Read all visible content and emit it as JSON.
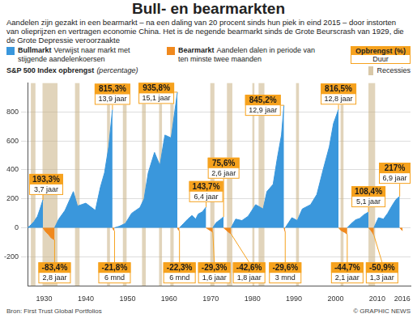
{
  "chart_data": {
    "type": "area",
    "title": "Bull- en bearmarkten",
    "subtitle": "Aandelen zijn gezakt in een bearmarkt – na een daling van 20 procent sinds hun piek in eind 2015 – door instorten van olieprijzen en vertragen economie China. Het is de negende bearmarkt sinds de Grote Beurscrash van 1929, die de Grote Depressie veroorzaakte",
    "y_label": "S&P 500 Index opbrengst",
    "y_label_note": "(percentage)",
    "xlim": [
      1926,
      2018
    ],
    "xticks": [
      1930,
      1940,
      1950,
      1960,
      1970,
      1980,
      1990,
      2000,
      2010,
      2016
    ],
    "ylim": [
      -400,
      1000
    ],
    "yticks": [
      -200,
      0,
      200,
      400,
      600,
      800
    ],
    "grid": true,
    "data_labels": true,
    "legend": "top",
    "label_legend": {
      "value": "Opbrengst (%)",
      "duration": "Duur"
    },
    "series": [
      {
        "name": "Bullmarkt",
        "description": "Verwijst naar markt met stijgende aandelenkoersen",
        "color": "#3a97dc",
        "segments": [
          {
            "x": [
              1926,
              1926.8,
              1927.6,
              1928.4,
              1929.0,
              1929.7
            ],
            "values": [
              0,
              20,
              45,
              80,
              130,
              193.3
            ],
            "value_label": "193,3%",
            "duration": "3,7 jaar"
          },
          {
            "x": [
              1932.5,
              1933.5,
              1935,
              1937,
              1938,
              1940,
              1942.3,
              1943.5,
              1944.5,
              1945.5,
              1946.4
            ],
            "values": [
              0,
              60,
              120,
              250,
              150,
              170,
              120,
              280,
              380,
              560,
              815.3
            ],
            "value_label": "815,3%",
            "duration": "13,9 jaar"
          },
          {
            "x": [
              1946.9,
              1948,
              1949.5,
              1951,
              1953,
              1954,
              1955,
              1956.5,
              1957.8,
              1959,
              1960.5,
              1962.0
            ],
            "values": [
              0,
              10,
              30,
              100,
              140,
              200,
              380,
              520,
              430,
              640,
              620,
              935.8
            ],
            "value_label": "935,8%",
            "duration": "15,1 jaar"
          },
          {
            "x": [
              1962.5,
              1963.5,
              1964.5,
              1965.5,
              1966.4,
              1967,
              1968,
              1968.9
            ],
            "values": [
              0,
              30,
              60,
              85,
              60,
              95,
              110,
              143.7
            ],
            "value_label": "143,7%",
            "duration": "6,4 jaar"
          },
          {
            "x": [
              1970.5,
              1971.3,
              1972.2,
              1973.1
            ],
            "values": [
              0,
              35,
              55,
              75.6
            ],
            "value_label": "75,6%",
            "duration": "2,6 jaar"
          },
          {
            "x": [
              1974.9,
              1976,
              1977.5,
              1979,
              1980.8,
              1982.6,
              1983.5,
              1985,
              1986,
              1987,
              1987.6
            ],
            "values": [
              0,
              60,
              50,
              80,
              160,
              130,
              250,
              300,
              480,
              640,
              845.2
            ],
            "value_label": "845,2%",
            "duration": "12,9 jaar"
          },
          {
            "x": [
              1987.9,
              1989.5,
              1990.8,
              1992,
              1994,
              1995.5,
              1997,
              1998.5,
              1999.5,
              2000.7
            ],
            "values": [
              0,
              70,
              50,
              130,
              160,
              230,
              400,
              560,
              720,
              816.5
            ],
            "value_label": "816,5%",
            "duration": "12,8 jaar"
          },
          {
            "x": [
              2002.8,
              2003.8,
              2004.8,
              2005.8,
              2006.8,
              2007.9
            ],
            "values": [
              0,
              30,
              55,
              65,
              90,
              108.4
            ],
            "value_label": "108,4%",
            "duration": "5,1 jaar"
          },
          {
            "x": [
              2009.2,
              2010.3,
              2011.5,
              2012.5,
              2013.5,
              2014.5,
              2015.4
            ],
            "values": [
              0,
              70,
              60,
              100,
              150,
              195,
              217
            ],
            "value_label": "217%",
            "duration": "6,9 jaar"
          }
        ]
      },
      {
        "name": "Bearmarkt",
        "description": "Aandelen dalen in periode van ten minste twee maanden",
        "color": "#f0891e",
        "segments": [
          {
            "x": [
              1929.7,
              1930.3,
              1931.0,
              1931.7,
              1932.5
            ],
            "values": [
              0,
              -25,
              -45,
              -70,
              -83.4
            ],
            "value_label": "-83,4%",
            "duration": "2,8 jaar"
          },
          {
            "x": [
              1946.4,
              1946.6,
              1946.9
            ],
            "values": [
              0,
              -12,
              -21.8
            ],
            "value_label": "-21,8%",
            "duration": "6 mnd"
          },
          {
            "x": [
              1962.0,
              1962.2,
              1962.5
            ],
            "values": [
              0,
              -12,
              -22.3
            ],
            "value_label": "-22,3%",
            "duration": "6 mnd"
          },
          {
            "x": [
              1968.9,
              1969.4,
              1970.0,
              1970.5
            ],
            "values": [
              0,
              -10,
              -20,
              -29.3
            ],
            "value_label": "-29,3%",
            "duration": "1,6 jaar"
          },
          {
            "x": [
              1973.1,
              1973.7,
              1974.3,
              1974.9
            ],
            "values": [
              0,
              -15,
              -30,
              -42.6
            ],
            "value_label": "-42,6%",
            "duration": "1,8 jaar"
          },
          {
            "x": [
              1987.6,
              1987.9
            ],
            "values": [
              0,
              -29.6
            ],
            "value_label": "-29,6%",
            "duration": "3 mnd"
          },
          {
            "x": [
              2000.7,
              2001.4,
              2002.1,
              2002.8
            ],
            "values": [
              0,
              -20,
              -30,
              -44.7
            ],
            "value_label": "-44,7%",
            "duration": "2,1 jaar"
          },
          {
            "x": [
              2007.9,
              2008.4,
              2008.9,
              2009.2
            ],
            "values": [
              0,
              -15,
              -35,
              -50.9
            ],
            "value_label": "-50,9%",
            "duration": "1,3 jaar"
          },
          {
            "x": [
              2015.4,
              2016.1
            ],
            "values": [
              0,
              -20
            ]
          }
        ]
      }
    ],
    "recessions": {
      "name": "Recessies",
      "color": "#c9b183",
      "ranges": [
        [
          1926.8,
          1927.9
        ],
        [
          1929.6,
          1933.2
        ],
        [
          1937.4,
          1938.5
        ],
        [
          1945.1,
          1945.8
        ],
        [
          1948.9,
          1949.8
        ],
        [
          1953.5,
          1954.4
        ],
        [
          1957.6,
          1958.3
        ],
        [
          1960.3,
          1961.1
        ],
        [
          1969.9,
          1970.9
        ],
        [
          1973.9,
          1975.2
        ],
        [
          1980.0,
          1980.5
        ],
        [
          1981.5,
          1982.9
        ],
        [
          1990.5,
          1991.2
        ],
        [
          2001.2,
          2001.9
        ],
        [
          2007.9,
          2009.5
        ]
      ]
    },
    "source": "Bron: First Trust Global Portfolios",
    "credit": "© GRAPHIC NEWS"
  }
}
